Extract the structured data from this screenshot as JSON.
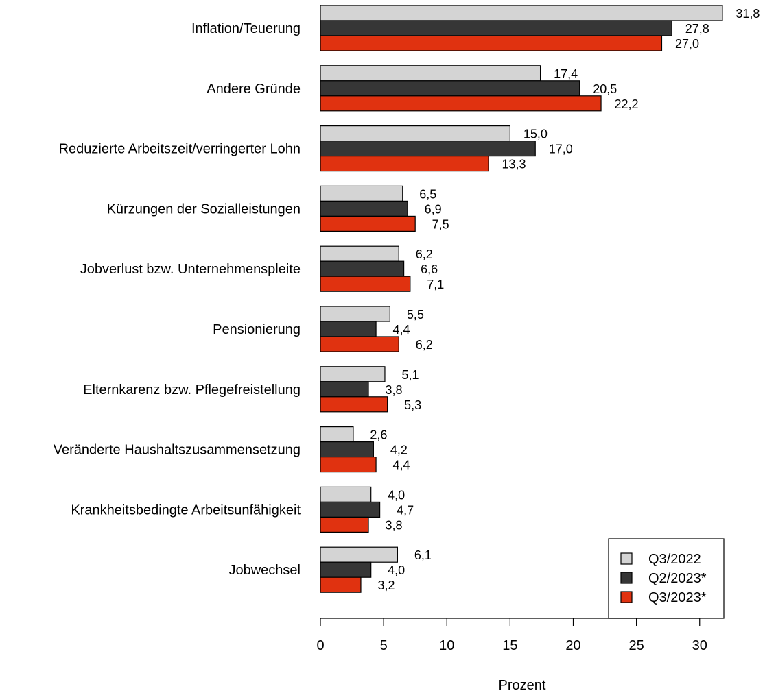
{
  "chart_data": {
    "type": "bar",
    "orientation": "horizontal",
    "categories": [
      "Inflation/Teuerung",
      "Andere Gründe",
      "Reduzierte Arbeitszeit/verringerter Lohn",
      "Kürzungen der Sozialleistungen",
      "Jobverlust bzw. Unternehmenspleite",
      "Pensionierung",
      "Elternkarenz bzw. Pflegefreistellung",
      "Veränderte Haushaltszusammensetzung",
      "Krankheitsbedingte Arbeitsunfähigkeit",
      "Jobwechsel"
    ],
    "series": [
      {
        "name": "Q3/2022",
        "color": "#d4d4d4",
        "values": [
          31.8,
          17.4,
          15.0,
          6.5,
          6.2,
          5.5,
          5.1,
          2.6,
          4.0,
          6.1
        ],
        "labels": [
          "31,8",
          "17,4",
          "15,0",
          "6,5",
          "6,2",
          "5,5",
          "5,1",
          "2,6",
          "4,0",
          "6,1"
        ]
      },
      {
        "name": "Q2/2023*",
        "color": "#363636",
        "values": [
          27.8,
          20.5,
          17.0,
          6.9,
          6.6,
          4.4,
          3.8,
          4.2,
          4.7,
          4.0
        ],
        "labels": [
          "27,8",
          "20,5",
          "17,0",
          "6,9",
          "6,6",
          "4,4",
          "3,8",
          "4,2",
          "4,7",
          "4,0"
        ]
      },
      {
        "name": "Q3/2023*",
        "color": "#e03210",
        "values": [
          27.0,
          22.2,
          13.3,
          7.5,
          7.1,
          6.2,
          5.3,
          4.4,
          3.8,
          3.2
        ],
        "labels": [
          "27,0",
          "22,2",
          "13,3",
          "7,5",
          "7,1",
          "6,2",
          "5,3",
          "4,4",
          "3,8",
          "3,2"
        ]
      }
    ],
    "xlabel": "Prozent",
    "xlim": [
      0,
      32
    ],
    "xticks": [
      0,
      5,
      10,
      15,
      20,
      25,
      30
    ],
    "xtick_labels": [
      "0",
      "5",
      "10",
      "15",
      "20",
      "25",
      "30"
    ],
    "grid": false,
    "legend_position": "bottom-right"
  }
}
